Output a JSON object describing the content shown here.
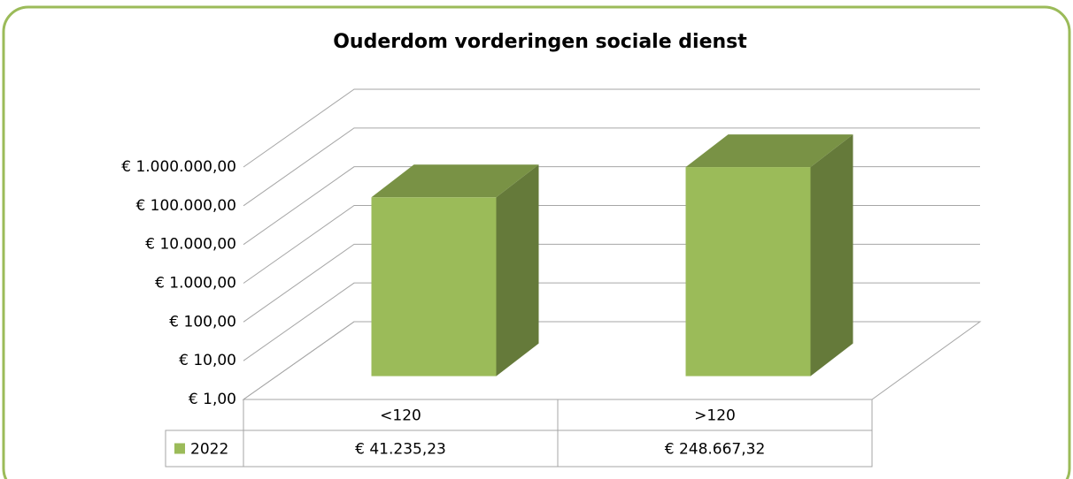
{
  "chart_data": {
    "type": "bar3d",
    "title": "Ouderdom vorderingen sociale dienst",
    "categories": [
      "<120",
      ">120"
    ],
    "series": [
      {
        "name": "2022",
        "color": "#9bbb59",
        "values": [
          41235.23,
          248667.32
        ],
        "value_labels": [
          "€ 41.235,23",
          "€ 248.667,32"
        ]
      }
    ],
    "log_scale": true,
    "grid": true,
    "legend": "table",
    "ylim": [
      1,
      1000000
    ],
    "yticks": [
      {
        "value": 1,
        "label": "€ 1,00"
      },
      {
        "value": 10,
        "label": "€ 10,00"
      },
      {
        "value": 100,
        "label": "€ 100,00"
      },
      {
        "value": 1000,
        "label": "€ 1.000,00"
      },
      {
        "value": 10000,
        "label": "€ 10.000,00"
      },
      {
        "value": 100000,
        "label": "€ 100.000,00"
      },
      {
        "value": 1000000,
        "label": "€ 1.000.000,00"
      }
    ]
  }
}
